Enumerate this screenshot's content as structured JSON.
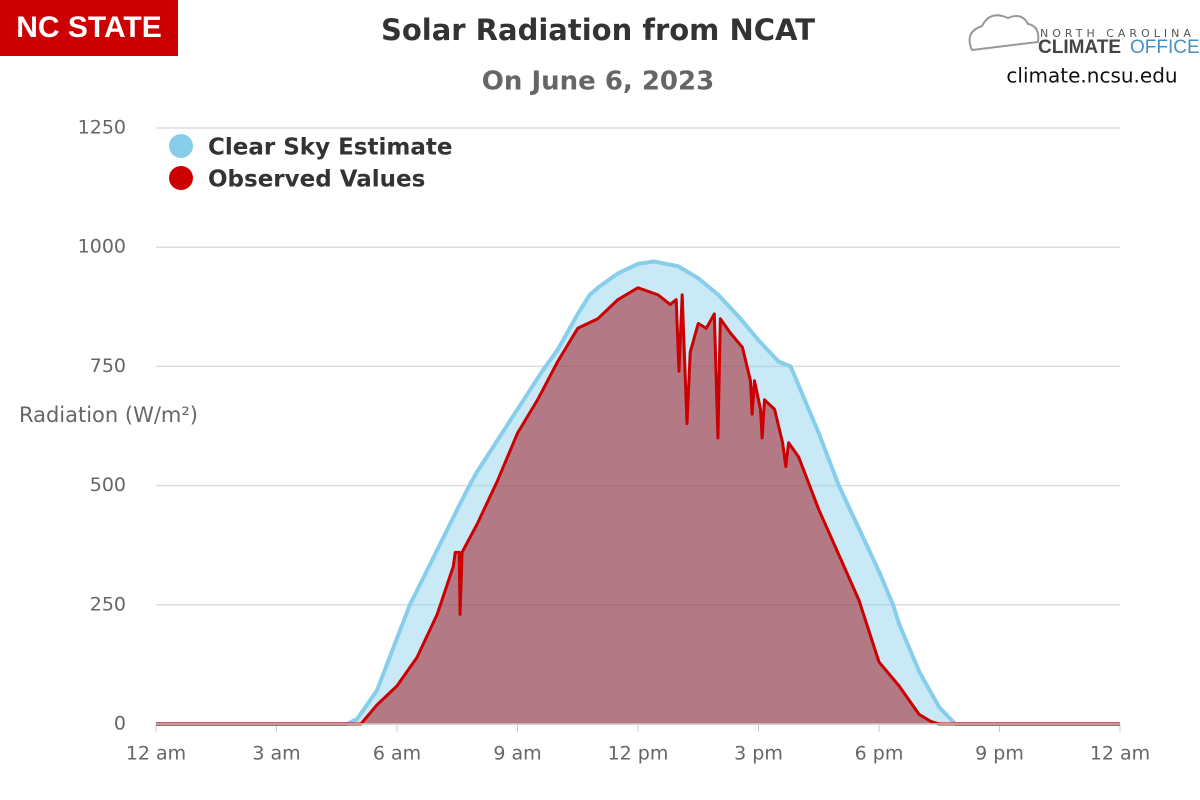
{
  "chart_data": {
    "type": "area",
    "title": "Solar Radiation from NCAT",
    "subtitle": "On June 6, 2023",
    "ylabel": "Radiation (W/m²)",
    "logo": {
      "left": "NC STATE",
      "top": "NORTH CAROLINA",
      "bold": "CLIMATE",
      "light": "OFFICE",
      "url": "climate.ncsu.edu"
    },
    "xlim": [
      0,
      24
    ],
    "xticks": [
      {
        "value": 0,
        "label": "12 am"
      },
      {
        "value": 3,
        "label": "3 am"
      },
      {
        "value": 6,
        "label": "6 am"
      },
      {
        "value": 9,
        "label": "9 am"
      },
      {
        "value": 12,
        "label": "12 pm"
      },
      {
        "value": 15,
        "label": "3 pm"
      },
      {
        "value": 18,
        "label": "6 pm"
      },
      {
        "value": 21,
        "label": "9 pm"
      },
      {
        "value": 24,
        "label": "12 am"
      }
    ],
    "ylim": [
      0,
      1250
    ],
    "yticks": [
      0,
      250,
      500,
      750,
      1000,
      1250
    ],
    "grid": true,
    "legend": "top-left",
    "series": [
      {
        "name": "Clear Sky Estimate",
        "color": "#87ceeb",
        "fill": "rgba(135,206,235,0.45)",
        "x": [
          0,
          4.5,
          4.75,
          5,
          5.5,
          6,
          6.32,
          6.5,
          7,
          7.5,
          7.8,
          8,
          8.5,
          9,
          9.5,
          9.7,
          10,
          10.5,
          10.8,
          11,
          11.5,
          12,
          12.4,
          13,
          13.5,
          14,
          14.5,
          15,
          15.5,
          15.8,
          16,
          16.5,
          17,
          17.5,
          18,
          18.35,
          18.5,
          19,
          19.5,
          19.9,
          20,
          24
        ],
        "y": [
          0,
          0,
          0,
          10,
          70,
          180,
          250,
          280,
          365,
          450,
          500,
          530,
          595,
          660,
          725,
          750,
          785,
          860,
          900,
          915,
          945,
          965,
          970,
          960,
          935,
          900,
          855,
          805,
          760,
          750,
          710,
          610,
          500,
          410,
          320,
          250,
          210,
          110,
          35,
          0,
          0,
          0
        ]
      },
      {
        "name": "Observed Values",
        "color": "#cc0000",
        "fill": "rgba(160,30,40,0.55)",
        "x": [
          0,
          5.1,
          5.2,
          5.5,
          6,
          6.5,
          7,
          7.4,
          7.45,
          7.55,
          7.57,
          7.62,
          8,
          8.5,
          9,
          9.5,
          10,
          10.5,
          11,
          11.5,
          12,
          12.5,
          12.8,
          12.95,
          13.02,
          13.1,
          13.22,
          13.3,
          13.5,
          13.7,
          13.9,
          13.99,
          14.05,
          14.3,
          14.6,
          14.8,
          14.84,
          14.9,
          15.05,
          15.09,
          15.15,
          15.4,
          15.6,
          15.68,
          15.75,
          16,
          16.5,
          17,
          17.5,
          18,
          18.5,
          19,
          19.3,
          19.5,
          24
        ],
        "y": [
          0,
          0,
          10,
          40,
          80,
          140,
          230,
          330,
          360,
          360,
          230,
          360,
          420,
          510,
          610,
          680,
          760,
          830,
          850,
          890,
          915,
          900,
          880,
          890,
          740,
          900,
          630,
          780,
          840,
          830,
          860,
          600,
          850,
          820,
          790,
          720,
          650,
          720,
          660,
          600,
          680,
          660,
          590,
          540,
          590,
          560,
          450,
          355,
          260,
          130,
          80,
          20,
          5,
          0,
          0
        ]
      }
    ]
  }
}
